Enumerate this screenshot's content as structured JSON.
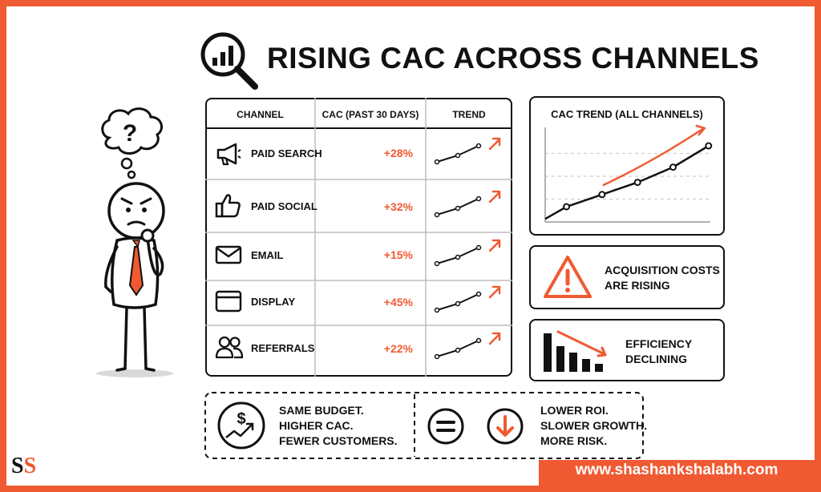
{
  "title": "RISING CAC ACROSS CHANNELS",
  "table": {
    "headers": {
      "channel": "CHANNEL",
      "cac": "CAC (PAST 30 DAYS)",
      "trend": "TREND"
    },
    "rows": [
      {
        "icon": "megaphone-icon",
        "channel": "PAID SEARCH",
        "cac": "+28%"
      },
      {
        "icon": "thumbs-up-icon",
        "channel": "PAID SOCIAL",
        "cac": "+32%"
      },
      {
        "icon": "envelope-icon",
        "channel": "EMAIL",
        "cac": "+15%"
      },
      {
        "icon": "browser-window-icon",
        "channel": "DISPLAY",
        "cac": "+45%"
      },
      {
        "icon": "people-icon",
        "channel": "REFERRALS",
        "cac": "+22%"
      }
    ]
  },
  "trend_chart": {
    "title": "CAC TREND (ALL CHANNELS)"
  },
  "chart_data": {
    "type": "line",
    "title": "CAC TREND (ALL CHANNELS)",
    "xlabel": "",
    "ylabel": "",
    "x": [
      1,
      2,
      3,
      4,
      5
    ],
    "y": [
      1.0,
      1.8,
      2.6,
      3.6,
      5.0
    ],
    "ylim": [
      0,
      6
    ],
    "grid": true,
    "trend_arrow": true
  },
  "alerts": {
    "costs": {
      "line1": "ACQUISITION COSTS",
      "line2": "ARE RISING",
      "icon": "warning-triangle-icon"
    },
    "efficiency": {
      "line1": "EFFICIENCY",
      "line2": "DECLINING",
      "icon": "declining-bars-icon"
    }
  },
  "bottom": {
    "left": {
      "line1": "SAME BUDGET.",
      "line2": "HIGHER CAC.",
      "line3": "FEWER CUSTOMERS.",
      "icon": "dollar-growth-icon"
    },
    "right": {
      "line1": "LOWER ROI.",
      "line2": "SLOWER GROWTH.",
      "line3": "MORE RISK.",
      "icons": [
        "equals-icon",
        "down-arrow-icon"
      ]
    }
  },
  "footer": {
    "url": "www.shashankshalabh.com",
    "logo": "SS"
  },
  "colors": {
    "accent": "#ef5a32",
    "ink": "#111111"
  }
}
